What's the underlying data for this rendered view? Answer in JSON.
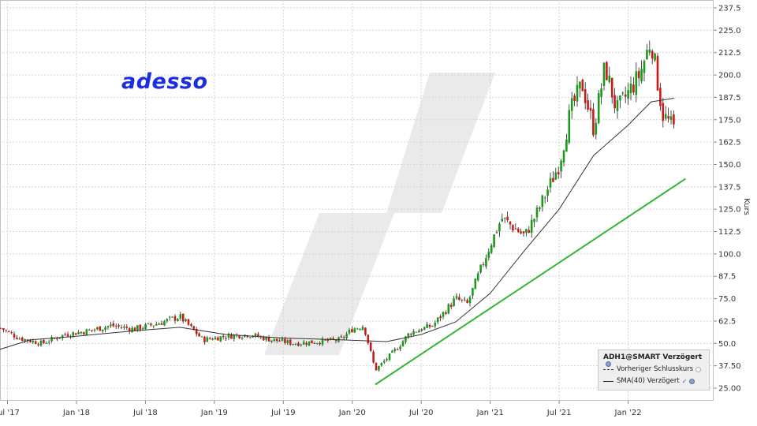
{
  "chart_data": {
    "type": "candlestick",
    "title": "adesso",
    "ylabel": "Kurs",
    "ylim": [
      25,
      237.5
    ],
    "y_ticks": [
      "237.5",
      "225.0",
      "212.5",
      "200.0",
      "187.5",
      "175.0",
      "162.5",
      "150.0",
      "137.5",
      "125.0",
      "112.5",
      "100.0",
      "87.5",
      "75.0",
      "62.5",
      "50.0",
      "37.50",
      "25.00"
    ],
    "x_ticks": [
      {
        "label": "Jul '17",
        "date": "2017-07"
      },
      {
        "label": "Jan '18",
        "date": "2018-01"
      },
      {
        "label": "Jul '18",
        "date": "2018-07"
      },
      {
        "label": "Jan '19",
        "date": "2019-01"
      },
      {
        "label": "Jul '19",
        "date": "2019-07"
      },
      {
        "label": "Jan '20",
        "date": "2020-01"
      },
      {
        "label": "Jul '20",
        "date": "2020-07"
      },
      {
        "label": "Jan '21",
        "date": "2021-01"
      },
      {
        "label": "Jul '21",
        "date": "2021-07"
      },
      {
        "label": "Jan '22",
        "date": "2022-01"
      }
    ],
    "grid": true,
    "up_color": "#1a9a1a",
    "down_color": "#cc1a1a",
    "price_path": [
      [
        "2017-06",
        60
      ],
      [
        "2017-08",
        53
      ],
      [
        "2017-10",
        50
      ],
      [
        "2017-12",
        55
      ],
      [
        "2018-02",
        57
      ],
      [
        "2018-04",
        60
      ],
      [
        "2018-06",
        58
      ],
      [
        "2018-08",
        61
      ],
      [
        "2018-10",
        65
      ],
      [
        "2018-12",
        52
      ],
      [
        "2019-02",
        54
      ],
      [
        "2019-04",
        55
      ],
      [
        "2019-06",
        52
      ],
      [
        "2019-08",
        50
      ],
      [
        "2019-10",
        51
      ],
      [
        "2019-12",
        52
      ],
      [
        "2020-01",
        58
      ],
      [
        "2020-02",
        60
      ],
      [
        "2020-03",
        35
      ],
      [
        "2020-05",
        48
      ],
      [
        "2020-06",
        56
      ],
      [
        "2020-08",
        60
      ],
      [
        "2020-10",
        75
      ],
      [
        "2020-11",
        72
      ],
      [
        "2021-01",
        105
      ],
      [
        "2021-02",
        120
      ],
      [
        "2021-04",
        110
      ],
      [
        "2021-05",
        122
      ],
      [
        "2021-07",
        150
      ],
      [
        "2021-08",
        180
      ],
      [
        "2021-09",
        195
      ],
      [
        "2021-10",
        170
      ],
      [
        "2021-11",
        205
      ],
      [
        "2021-12",
        180
      ],
      [
        "2022-01",
        190
      ],
      [
        "2022-02",
        200
      ],
      [
        "2022-03",
        220
      ],
      [
        "2022-04",
        178
      ],
      [
        "2022-05",
        170
      ]
    ],
    "series": [
      {
        "name": "SMA(40) Verzögert",
        "style": "line",
        "color": "#333333",
        "points": [
          [
            "2017-06",
            46
          ],
          [
            "2017-09",
            52
          ],
          [
            "2018-01",
            54
          ],
          [
            "2018-06",
            57
          ],
          [
            "2018-10",
            59
          ],
          [
            "2019-02",
            55
          ],
          [
            "2019-07",
            53
          ],
          [
            "2019-12",
            52
          ],
          [
            "2020-04",
            51
          ],
          [
            "2020-07",
            55
          ],
          [
            "2020-10",
            62
          ],
          [
            "2021-01",
            78
          ],
          [
            "2021-04",
            102
          ],
          [
            "2021-07",
            125
          ],
          [
            "2021-10",
            155
          ],
          [
            "2022-01",
            172
          ],
          [
            "2022-03",
            185
          ],
          [
            "2022-05",
            187
          ]
        ]
      },
      {
        "name": "Trendlinie",
        "style": "line",
        "color": "#2eb82e",
        "points": [
          [
            "2020-03",
            27
          ],
          [
            "2022-06",
            142
          ]
        ]
      }
    ],
    "legend": {
      "header": "ADH1@SMART Verzögert",
      "items": [
        "Vorheriger Schlusskurs",
        "SMA(40) Verzögert"
      ],
      "position": "bottom-right"
    }
  }
}
